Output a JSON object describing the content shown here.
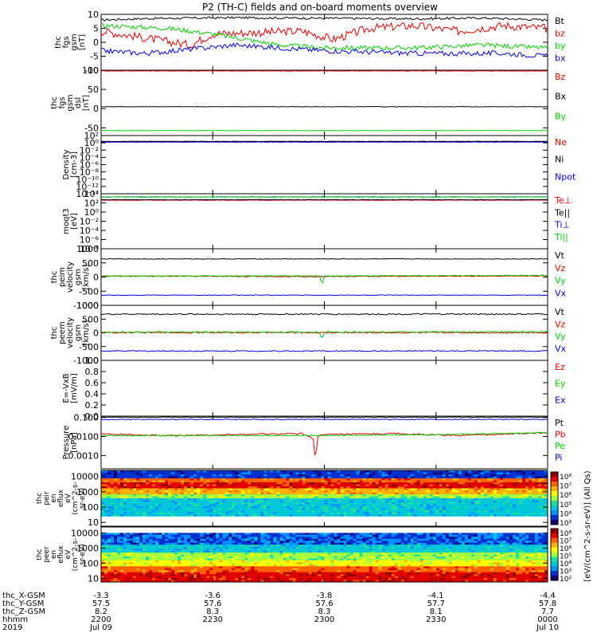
{
  "title": "P2 (TH-C) fields and on-board moments overview",
  "colors": {
    "black": "#000000",
    "red": "#e00000",
    "green": "#00d000",
    "blue": "#0000e0"
  },
  "chart_data": {
    "type": "line",
    "x_range": [
      "2200",
      "0000"
    ],
    "panels": [
      {
        "name": "fgs",
        "ylabel": [
          "thc",
          "fgs",
          "gsm",
          "[nT]"
        ],
        "ticks": [
          "10",
          "5",
          "0",
          "-5",
          "-10"
        ],
        "tick_values": [
          10,
          5,
          0,
          -5,
          -10
        ],
        "ylim": [
          -10,
          10
        ],
        "series": [
          {
            "name": "Bt",
            "color": "black",
            "points": [
              [
                0,
                8
              ],
              [
                0.1,
                8.5
              ],
              [
                0.3,
                8.8
              ],
              [
                0.5,
                8.6
              ],
              [
                0.7,
                8.4
              ],
              [
                0.85,
                8.7
              ],
              [
                1,
                8
              ]
            ],
            "noise": 0.4
          },
          {
            "name": "bz",
            "color": "red",
            "points": [
              [
                0,
                4
              ],
              [
                0.12,
                1
              ],
              [
                0.2,
                -1
              ],
              [
                0.25,
                3
              ],
              [
                0.45,
                4
              ],
              [
                0.52,
                1
              ],
              [
                0.6,
                5
              ],
              [
                0.7,
                6
              ],
              [
                0.8,
                4
              ],
              [
                0.9,
                6
              ],
              [
                1,
                5
              ]
            ],
            "noise": 1.5
          },
          {
            "name": "by",
            "color": "green",
            "points": [
              [
                0,
                6
              ],
              [
                0.15,
                5
              ],
              [
                0.25,
                3
              ],
              [
                0.4,
                -1
              ],
              [
                0.5,
                -2
              ],
              [
                0.7,
                -2
              ],
              [
                0.85,
                -1
              ],
              [
                1,
                -2
              ]
            ],
            "noise": 0.8
          },
          {
            "name": "bx",
            "color": "blue",
            "points": [
              [
                0,
                -3
              ],
              [
                0.1,
                -4
              ],
              [
                0.3,
                -1
              ],
              [
                0.5,
                -3
              ],
              [
                0.7,
                -4
              ],
              [
                0.9,
                -4
              ],
              [
                1,
                -5
              ]
            ],
            "noise": 0.9
          }
        ]
      },
      {
        "name": "fgs_dsl",
        "ylabel": [
          "thc",
          "fgs",
          "gsm",
          "dsl",
          "[nT]"
        ],
        "ticks": [
          "100",
          "50",
          "0",
          "-50"
        ],
        "tick_values": [
          100,
          50,
          0,
          -50
        ],
        "ylim": [
          -70,
          100
        ],
        "series": [
          {
            "name": "Bz",
            "color": "red",
            "points": [
              [
                0,
                98
              ],
              [
                1,
                98
              ]
            ],
            "noise": 0.6
          },
          {
            "name": "Bx",
            "color": "black",
            "points": [
              [
                0,
                5
              ],
              [
                1,
                5
              ]
            ],
            "noise": 0.6
          },
          {
            "name": "By",
            "color": "green",
            "points": [
              [
                0,
                -57
              ],
              [
                1,
                -57
              ]
            ],
            "noise": 0.6
          }
        ]
      },
      {
        "name": "density",
        "ylabel": [
          "Density",
          "[cm-3]"
        ],
        "ticks": [
          "10²",
          "10⁰",
          "10⁻²",
          "10⁻⁴",
          "10⁻⁶",
          "10⁻⁸",
          "10⁻¹⁰",
          "10⁻¹²",
          "10⁻¹⁴"
        ],
        "tick_values": [
          2,
          0,
          -2,
          -4,
          -6,
          -8,
          -10,
          -12,
          -14
        ],
        "ylim": [
          -14,
          2
        ],
        "series": [
          {
            "name": "Ne",
            "color": "red",
            "points": [
              [
                0,
                0.3
              ],
              [
                1,
                0.3
              ]
            ],
            "noise": 0.05
          },
          {
            "name": "Ni",
            "color": "black",
            "points": [
              [
                0,
                0.4
              ],
              [
                1,
                0.4
              ]
            ],
            "noise": 0.05
          },
          {
            "name": "Npot",
            "color": "blue",
            "points": [
              [
                0,
                0.2
              ],
              [
                1,
                0.2
              ]
            ],
            "noise": 0.05
          }
        ]
      },
      {
        "name": "moqt3",
        "ylabel": [
          "moqt3",
          "[eV]"
        ],
        "ticks": [
          "10⁴",
          "10²",
          "10⁰",
          "10⁻²",
          "10⁻⁴",
          "10⁻⁶",
          "10⁻⁸"
        ],
        "tick_values": [
          4,
          2,
          0,
          -2,
          -4,
          -6,
          -8
        ],
        "ylim": [
          -8,
          4
        ],
        "series": [
          {
            "name": "Te⊥",
            "color": "red",
            "points": [
              [
                0,
                2.6
              ],
              [
                1,
                2.6
              ]
            ],
            "noise": 0.05
          },
          {
            "name": "Te||",
            "color": "black",
            "points": [
              [
                0,
                2.7
              ],
              [
                1,
                2.7
              ]
            ],
            "noise": 0.05
          },
          {
            "name": "Ti⊥",
            "color": "blue",
            "points": [
              [
                0,
                3.3
              ],
              [
                1,
                3.3
              ]
            ],
            "noise": 0.05
          },
          {
            "name": "Ti||",
            "color": "green",
            "points": [
              [
                0,
                3.3
              ],
              [
                1,
                3.3
              ]
            ],
            "noise": 0.05
          }
        ]
      },
      {
        "name": "peim",
        "ylabel": [
          "thc",
          "peim",
          "velocity",
          "gsm",
          "[km/s]"
        ],
        "ticks": [
          "1000",
          "500",
          "0",
          "-500",
          "-1000"
        ],
        "tick_values": [
          1000,
          500,
          0,
          -500,
          -1000
        ],
        "ylim": [
          -1000,
          1000
        ],
        "series": [
          {
            "name": "Vt",
            "color": "black",
            "points": [
              [
                0,
                640
              ],
              [
                1,
                640
              ]
            ],
            "noise": 10
          },
          {
            "name": "Vz",
            "color": "red",
            "points": [
              [
                0,
                30
              ],
              [
                0.5,
                20
              ],
              [
                1,
                40
              ]
            ],
            "noise": 15
          },
          {
            "name": "Vy",
            "color": "green",
            "points": [
              [
                0,
                40
              ],
              [
                0.49,
                40
              ],
              [
                0.495,
                -300
              ],
              [
                0.5,
                40
              ],
              [
                1,
                60
              ]
            ],
            "noise": 10
          },
          {
            "name": "Vx",
            "color": "blue",
            "points": [
              [
                0,
                -640
              ],
              [
                1,
                -640
              ]
            ],
            "noise": 10
          }
        ]
      },
      {
        "name": "peem",
        "ylabel": [
          "thc",
          "peem",
          "velocity",
          "gsm",
          "[km/s]"
        ],
        "ticks": [
          "1000",
          "500",
          "0",
          "-500",
          "-1000"
        ],
        "tick_values": [
          1000,
          500,
          0,
          -500,
          -1000
        ],
        "ylim": [
          -1000,
          1000
        ],
        "series": [
          {
            "name": "Vt",
            "color": "black",
            "points": [
              [
                0,
                680
              ],
              [
                1,
                680
              ]
            ],
            "noise": 25
          },
          {
            "name": "Vz",
            "color": "red",
            "points": [
              [
                0,
                10
              ],
              [
                1,
                10
              ]
            ],
            "noise": 25
          },
          {
            "name": "Vy",
            "color": "green",
            "points": [
              [
                0,
                30
              ],
              [
                0.49,
                30
              ],
              [
                0.495,
                -250
              ],
              [
                0.5,
                30
              ],
              [
                1,
                40
              ]
            ],
            "noise": 20
          },
          {
            "name": "Vx",
            "color": "blue",
            "points": [
              [
                0,
                -660
              ],
              [
                1,
                -660
              ]
            ],
            "noise": 20
          }
        ]
      },
      {
        "name": "efield",
        "ylabel": [
          "E=-VxB",
          "[mV/m]"
        ],
        "ticks": [
          "1.0",
          "0.8",
          "0.6",
          "0.4",
          "0.2",
          "0.0"
        ],
        "tick_values": [
          1.0,
          0.8,
          0.6,
          0.4,
          0.2,
          0.0
        ],
        "ylim": [
          0,
          1
        ],
        "series": [
          {
            "name": "Ez",
            "color": "red",
            "points": [],
            "noise": 0
          },
          {
            "name": "Ey",
            "color": "green",
            "points": [],
            "noise": 0
          },
          {
            "name": "Ex",
            "color": "blue",
            "points": [],
            "noise": 0
          }
        ]
      },
      {
        "name": "pressure",
        "ylabel": [
          "Pressure",
          "[nPa]"
        ],
        "ticks": [
          "0.100",
          "0.0100",
          "0.0010"
        ],
        "tick_values": [
          -1,
          -2,
          -3
        ],
        "ylim": [
          -3.7,
          -0.93
        ],
        "series": [
          {
            "name": "Pt",
            "color": "black",
            "points": [
              [
                0,
                -0.98
              ],
              [
                1,
                -0.98
              ]
            ],
            "noise": 0.01
          },
          {
            "name": "Pb",
            "color": "red",
            "points": [
              [
                0,
                -1.85
              ],
              [
                0.15,
                -1.95
              ],
              [
                0.3,
                -1.9
              ],
              [
                0.45,
                -1.85
              ],
              [
                0.475,
                -2.1
              ],
              [
                0.48,
                -3.3
              ],
              [
                0.485,
                -2.0
              ],
              [
                0.5,
                -1.9
              ],
              [
                0.65,
                -1.85
              ],
              [
                0.8,
                -1.95
              ],
              [
                1,
                -1.8
              ]
            ],
            "noise": 0.04
          },
          {
            "name": "Pe",
            "color": "green",
            "points": [
              [
                0,
                -1.95
              ],
              [
                0.5,
                -1.95
              ],
              [
                0.75,
                -1.9
              ],
              [
                1,
                -1.8
              ]
            ],
            "noise": 0.02
          },
          {
            "name": "Pi",
            "color": "blue",
            "points": [
              [
                0,
                -1.1
              ],
              [
                1,
                -1.1
              ]
            ],
            "noise": 0.02
          }
        ]
      }
    ],
    "spectrograms": [
      {
        "name": "peir",
        "ylabel": [
          "thc",
          "peir",
          "en",
          "eflux",
          "eV",
          "(cm^2-s-",
          "sr-eV)"
        ],
        "ticks": [
          "10000",
          "1000",
          "100",
          "10"
        ],
        "tick_values": [
          4,
          3,
          2,
          1
        ]
      },
      {
        "name": "peer",
        "ylabel": [
          "thc",
          "peer",
          "en",
          "eflux",
          "eV",
          "(cm^2-s-",
          "sr-eV)"
        ],
        "ticks": [
          "10000",
          "1000",
          "100",
          "10"
        ],
        "tick_values": [
          4,
          3,
          2,
          1
        ]
      }
    ],
    "colorbars": [
      {
        "ticks": [
          "10⁸",
          "10⁷",
          "10⁶",
          "10⁵",
          "10⁴",
          "10³"
        ]
      },
      {
        "ticks": [
          "10⁸",
          "10⁷",
          "10⁶",
          "10⁵",
          "10⁴",
          "10³",
          "10²"
        ]
      }
    ],
    "colorbar_label": "[eV/(cm^2-s-sr-eV)] (All Qs)",
    "x_axis": {
      "row_labels": [
        "thc_X-GSM",
        "thc_Y-GSM",
        "thc_Z-GSM",
        "hhmm",
        "2019"
      ],
      "columns": [
        {
          "values": [
            "-3.3",
            "57.5",
            "8.2",
            "2200",
            "Jul 09"
          ]
        },
        {
          "values": [
            "-3.6",
            "57.6",
            "8.3",
            "2230",
            ""
          ]
        },
        {
          "values": [
            "-3.8",
            "57.6",
            "8.3",
            "2300",
            ""
          ]
        },
        {
          "values": [
            "-4.1",
            "57.7",
            "8.1",
            "2330",
            ""
          ]
        },
        {
          "values": [
            "-4.4",
            "57.8",
            "7.7",
            "0000",
            "Jul 10"
          ]
        }
      ]
    }
  }
}
